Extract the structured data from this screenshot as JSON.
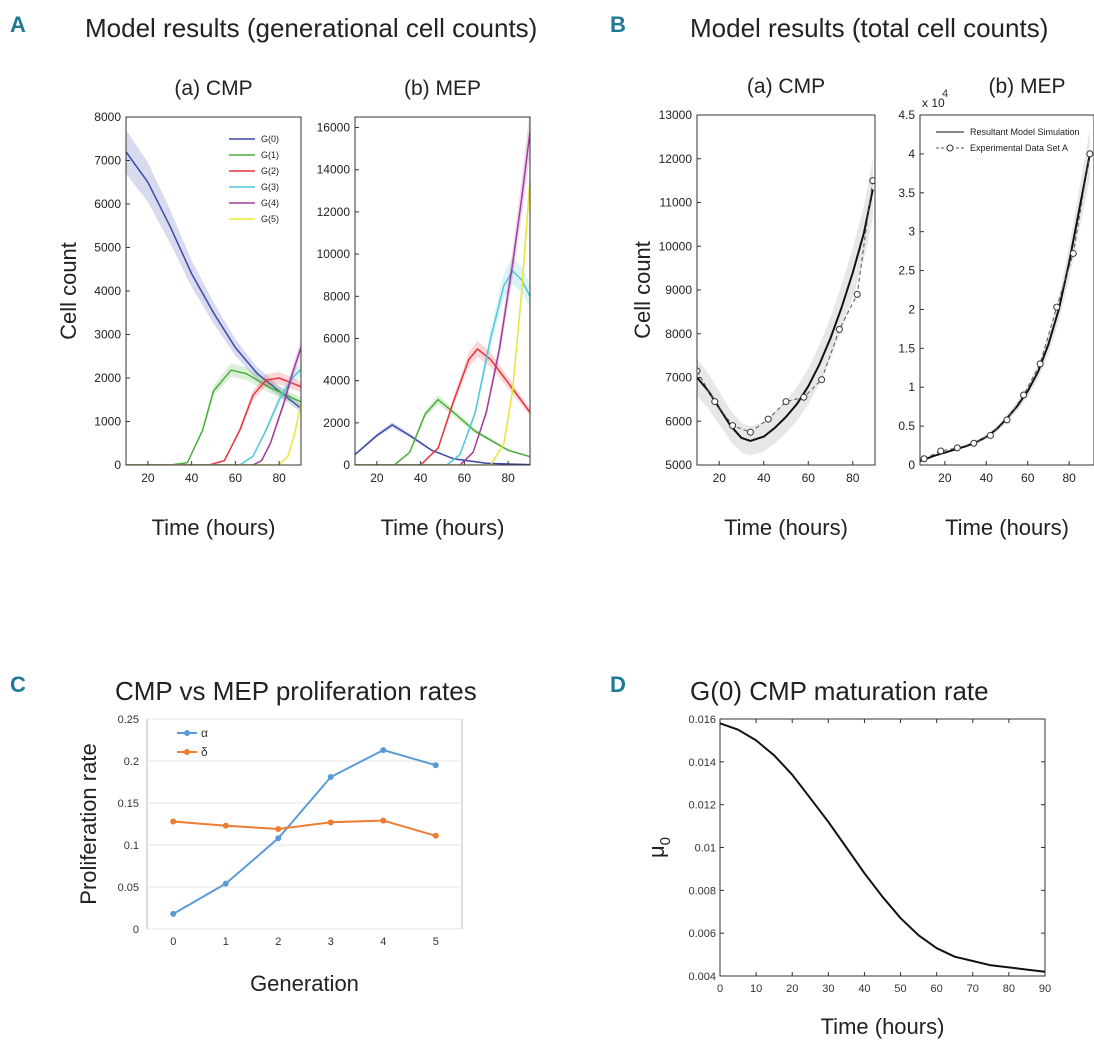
{
  "panels": {
    "A": {
      "letter": "A",
      "title": "Model results (generational cell counts)"
    },
    "B": {
      "letter": "B",
      "title": "Model results (total cell counts)"
    },
    "C": {
      "letter": "C",
      "title": "CMP vs MEP proliferation rates"
    },
    "D": {
      "letter": "D",
      "title": "G(0) CMP maturation rate"
    }
  },
  "chart_data": [
    {
      "id": "A-a",
      "type": "line",
      "title": "(a) CMP",
      "xlabel": "Time (hours)",
      "ylabel": "Cell count",
      "xlim": [
        10,
        90
      ],
      "ylim": [
        0,
        8000
      ],
      "xticks": [
        20,
        40,
        60,
        80
      ],
      "yticks": [
        0,
        1000,
        2000,
        3000,
        4000,
        5000,
        6000,
        7000,
        8000
      ],
      "legend": "top-right",
      "series": [
        {
          "name": "G(0)",
          "color": "#3a4aa8",
          "x": [
            10,
            20,
            30,
            40,
            50,
            60,
            70,
            80,
            90
          ],
          "y": [
            7200,
            6500,
            5500,
            4400,
            3500,
            2700,
            2100,
            1700,
            1300
          ]
        },
        {
          "name": "G(1)",
          "color": "#4cae3c",
          "x": [
            10,
            30,
            38,
            45,
            50,
            58,
            65,
            75,
            90
          ],
          "y": [
            0,
            0,
            50,
            800,
            1700,
            2180,
            2100,
            1800,
            1450
          ]
        },
        {
          "name": "G(2)",
          "color": "#e8343a",
          "x": [
            10,
            48,
            55,
            62,
            68,
            74,
            80,
            90
          ],
          "y": [
            0,
            0,
            100,
            800,
            1600,
            1950,
            2000,
            1800
          ]
        },
        {
          "name": "G(3)",
          "color": "#4ec7dd",
          "x": [
            10,
            62,
            68,
            74,
            80,
            86,
            90
          ],
          "y": [
            0,
            0,
            200,
            800,
            1500,
            2000,
            2200
          ]
        },
        {
          "name": "G(4)",
          "color": "#a23a9a",
          "x": [
            10,
            68,
            72,
            76,
            82,
            86,
            90
          ],
          "y": [
            0,
            0,
            100,
            500,
            1400,
            2100,
            2700
          ]
        },
        {
          "name": "G(5)",
          "color": "#e8e638",
          "x": [
            10,
            80,
            84,
            87,
            90
          ],
          "y": [
            0,
            0,
            200,
            700,
            1400
          ]
        }
      ]
    },
    {
      "id": "A-b",
      "type": "line",
      "title": "(b) MEP",
      "xlabel": "Time (hours)",
      "ylabel": "",
      "xlim": [
        10,
        90
      ],
      "ylim": [
        0,
        16500
      ],
      "xticks": [
        20,
        40,
        60,
        80
      ],
      "yticks": [
        0,
        2000,
        4000,
        6000,
        8000,
        10000,
        12000,
        14000,
        16000
      ],
      "series": [
        {
          "name": "G(0)",
          "color": "#3a4aa8",
          "x": [
            10,
            20,
            27,
            35,
            45,
            55,
            70,
            90
          ],
          "y": [
            500,
            1400,
            1900,
            1400,
            700,
            300,
            80,
            20
          ]
        },
        {
          "name": "G(1)",
          "color": "#4cae3c",
          "x": [
            10,
            28,
            35,
            42,
            48,
            55,
            65,
            80,
            90
          ],
          "y": [
            0,
            0,
            600,
            2400,
            3100,
            2500,
            1600,
            700,
            400
          ]
        },
        {
          "name": "G(2)",
          "color": "#e8343a",
          "x": [
            10,
            40,
            48,
            55,
            62,
            66,
            72,
            80,
            90
          ],
          "y": [
            0,
            0,
            800,
            3000,
            5000,
            5500,
            5000,
            3900,
            2500
          ]
        },
        {
          "name": "G(3)",
          "color": "#4ec7dd",
          "x": [
            10,
            52,
            58,
            65,
            72,
            78,
            82,
            86,
            90
          ],
          "y": [
            0,
            0,
            500,
            2500,
            6000,
            8500,
            9200,
            8800,
            8000
          ]
        },
        {
          "name": "G(4)",
          "color": "#a23a9a",
          "x": [
            10,
            58,
            64,
            70,
            76,
            82,
            86,
            90
          ],
          "y": [
            0,
            0,
            600,
            2500,
            5500,
            9500,
            12500,
            15800
          ]
        },
        {
          "name": "G(5)",
          "color": "#e8e638",
          "x": [
            10,
            72,
            78,
            82,
            86,
            90
          ],
          "y": [
            0,
            0,
            1000,
            3500,
            8000,
            13500
          ]
        }
      ]
    },
    {
      "id": "B-a",
      "type": "line",
      "title": "(a) CMP",
      "xlabel": "Time (hours)",
      "ylabel": "Cell count",
      "xlim": [
        10,
        90
      ],
      "ylim": [
        5000,
        13000
      ],
      "xticks": [
        20,
        40,
        60,
        80
      ],
      "yticks": [
        5000,
        6000,
        7000,
        8000,
        9000,
        10000,
        11000,
        12000,
        13000
      ],
      "series": [
        {
          "name": "Resultant Model Simulation",
          "color": "#111111",
          "x": [
            10,
            15,
            20,
            25,
            30,
            34,
            40,
            45,
            50,
            55,
            60,
            65,
            70,
            75,
            80,
            85,
            89
          ],
          "y": [
            7000,
            6700,
            6300,
            5900,
            5620,
            5550,
            5650,
            5850,
            6100,
            6400,
            6800,
            7300,
            7900,
            8600,
            9400,
            10300,
            11300
          ]
        },
        {
          "name": "Experimental Data Set A",
          "color": "#555555",
          "x": [
            10,
            18,
            26,
            34,
            42,
            50,
            58,
            66,
            74,
            82,
            89
          ],
          "y": [
            7150,
            6450,
            5900,
            5750,
            6050,
            6450,
            6550,
            6950,
            8100,
            8900,
            11500
          ]
        }
      ]
    },
    {
      "id": "B-b",
      "type": "line",
      "title": "(b) MEP",
      "xlabel": "Time (hours)",
      "ylabel": "",
      "scale_label": "x 10",
      "scale_exponent": "4",
      "xlim": [
        8,
        92
      ],
      "ylim": [
        0,
        4.5
      ],
      "xticks": [
        20,
        40,
        60,
        80
      ],
      "yticks": [
        0,
        0.5,
        1,
        1.5,
        2,
        2.5,
        3,
        3.5,
        4,
        4.5
      ],
      "legend": "top-left",
      "series": [
        {
          "name": "Resultant Model Simulation",
          "color": "#111111",
          "x": [
            8,
            15,
            20,
            25,
            30,
            35,
            40,
            45,
            50,
            55,
            60,
            65,
            70,
            75,
            80,
            85,
            90
          ],
          "y": [
            0.05,
            0.12,
            0.16,
            0.2,
            0.24,
            0.29,
            0.36,
            0.46,
            0.6,
            0.76,
            0.95,
            1.2,
            1.55,
            2.0,
            2.6,
            3.3,
            4.0
          ]
        },
        {
          "name": "Experimental Data Set A",
          "color": "#555555",
          "x": [
            10,
            18,
            26,
            34,
            42,
            50,
            58,
            66,
            74,
            82,
            90
          ],
          "y": [
            0.08,
            0.18,
            0.22,
            0.28,
            0.38,
            0.58,
            0.9,
            1.3,
            2.03,
            2.72,
            4.0
          ]
        }
      ]
    },
    {
      "id": "C",
      "type": "line",
      "title": "",
      "xlabel": "Generation",
      "ylabel": "Proliferation rate",
      "xlim": [
        -0.5,
        5.5
      ],
      "ylim": [
        0,
        0.25
      ],
      "categories": [
        "0",
        "1",
        "2",
        "3",
        "4",
        "5"
      ],
      "yticks": [
        0,
        0.05,
        0.1,
        0.15,
        0.2,
        0.25
      ],
      "grid": true,
      "legend": "top-left",
      "series": [
        {
          "name": "α",
          "color": "#5b9bd5",
          "values": [
            0.018,
            0.054,
            0.108,
            0.181,
            0.213,
            0.195
          ]
        },
        {
          "name": "δ",
          "color": "#ed7d31",
          "values": [
            0.128,
            0.123,
            0.119,
            0.127,
            0.129,
            0.111
          ]
        }
      ]
    },
    {
      "id": "D",
      "type": "line",
      "title": "",
      "xlabel": "Time (hours)",
      "ylabel": "μ",
      "ylabel_sub": "0",
      "xlim": [
        0,
        90
      ],
      "ylim": [
        0.004,
        0.016
      ],
      "xticks": [
        0,
        10,
        20,
        30,
        40,
        50,
        60,
        70,
        80,
        90
      ],
      "yticks": [
        0.004,
        0.006,
        0.008,
        0.01,
        0.012,
        0.014,
        0.016
      ],
      "series": [
        {
          "name": "",
          "color": "#111111",
          "x": [
            0,
            5,
            10,
            15,
            20,
            25,
            30,
            35,
            40,
            45,
            50,
            55,
            60,
            65,
            70,
            75,
            80,
            85,
            90
          ],
          "y": [
            0.0158,
            0.0155,
            0.015,
            0.0143,
            0.0134,
            0.0123,
            0.0112,
            0.01,
            0.0088,
            0.0077,
            0.0067,
            0.0059,
            0.0053,
            0.0049,
            0.0047,
            0.0045,
            0.0044,
            0.0043,
            0.0042
          ]
        }
      ]
    }
  ]
}
